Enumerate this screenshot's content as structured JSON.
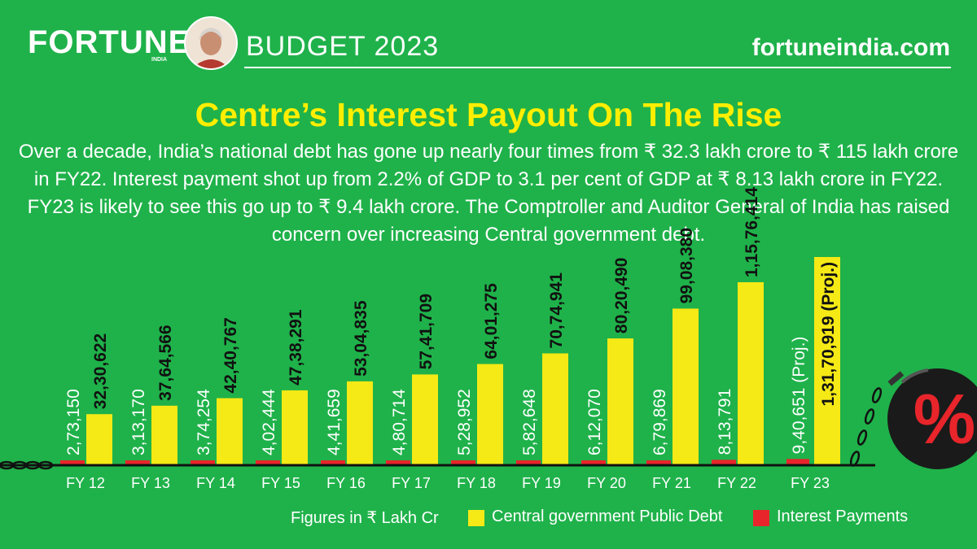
{
  "header": {
    "brand": "FORTUNE",
    "brand_sub": "INDIA",
    "section": "BUDGET 2023",
    "site": "fortuneindia.com"
  },
  "title": "Centre’s Interest Payout On The Rise",
  "description": "Over a decade, India’s national debt has gone up nearly four times from ₹ 32.3 lakh crore to ₹ 115 lakh crore in FY22. Interest payment shot up from 2.2% of GDP to 3.1 per cent of GDP at ₹ 8.13 lakh crore in FY22. FY23 is likely to see this go up to ₹ 9.4 lakh crore. The Comptroller and Auditor General of India has raised concern over increasing Central government debt.",
  "legend": {
    "note": "Figures in ₹ Lakh Cr",
    "debt_label": "Central government Public Debt",
    "interest_label": "Interest Payments"
  },
  "colors": {
    "background": "#1fb24a",
    "debt": "#f5e916",
    "interest": "#e8252b",
    "title": "#ffee00"
  },
  "decoration": {
    "ball_symbol": "%"
  },
  "chart_data": {
    "type": "bar",
    "categories": [
      "FY 12",
      "FY 13",
      "FY 14",
      "FY 15",
      "FY 16",
      "FY 17",
      "FY 18",
      "FY 19",
      "FY 20",
      "FY 21",
      "FY 22",
      "FY 23"
    ],
    "series": [
      {
        "name": "Central government Public Debt",
        "values": [
          3230622,
          3764566,
          4240767,
          4738291,
          5304835,
          5741709,
          6401275,
          7074941,
          8020490,
          9908380,
          11576414,
          13170919
        ],
        "labels": [
          "32,30,622",
          "37,64,566",
          "42,40,767",
          "47,38,291",
          "53,04,835",
          "57,41,709",
          "64,01,275",
          "70,74,941",
          "80,20,490",
          "99,08,380",
          "1,15,76,414",
          "1,31,70,919 (Proj.)"
        ]
      },
      {
        "name": "Interest Payments",
        "values": [
          273150,
          313170,
          374254,
          402444,
          441659,
          480714,
          528952,
          582648,
          612070,
          679869,
          813791,
          940651
        ],
        "labels": [
          "2,73,150",
          "3,13,170",
          "3,74,254",
          "4,02,444",
          "4,41,659",
          "4,80,714",
          "5,28,952",
          "5,82,648",
          "6,12,070",
          "6,79,869",
          "8,13,791",
          "9,40,651 (Proj.)"
        ]
      }
    ],
    "xlabel": "",
    "ylabel": ""
  }
}
